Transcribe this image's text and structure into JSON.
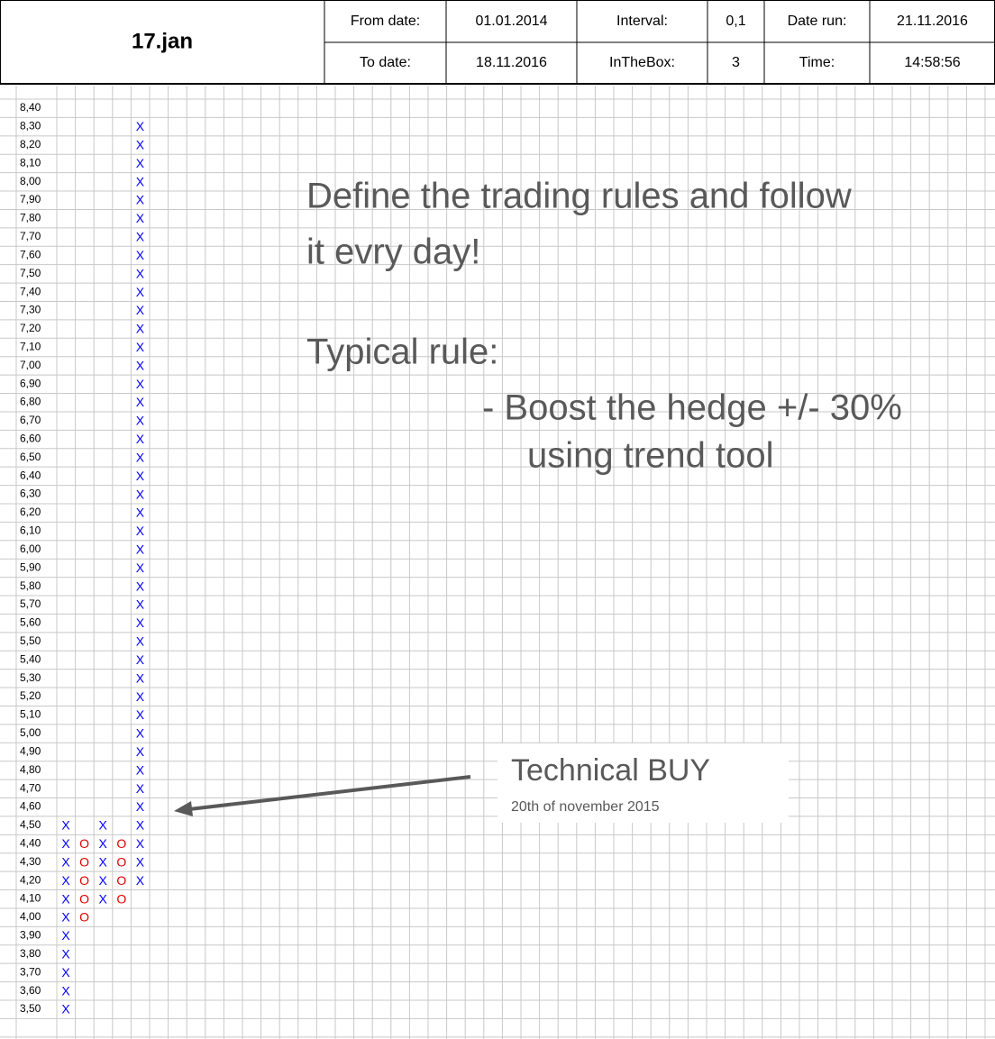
{
  "header": {
    "title": "17.jan",
    "rows": [
      [
        "From date:",
        "01.01.2014",
        "Interval:",
        "0,1",
        "Date run:",
        "21.11.2016"
      ],
      [
        "To date:",
        "18.11.2016",
        "InTheBox:",
        "3",
        "Time:",
        "14:58:56"
      ]
    ]
  },
  "chart_data": {
    "type": "point_and_figure",
    "box_size": 0.1,
    "ylim": [
      3.5,
      8.4
    ],
    "yticks": [
      {
        "value": 8.4,
        "label": "8,40"
      },
      {
        "value": 8.3,
        "label": "8,30"
      },
      {
        "value": 8.2,
        "label": "8,20"
      },
      {
        "value": 8.1,
        "label": "8,10"
      },
      {
        "value": 8.0,
        "label": "8,00"
      },
      {
        "value": 7.9,
        "label": "7,90"
      },
      {
        "value": 7.8,
        "label": "7,80"
      },
      {
        "value": 7.7,
        "label": "7,70"
      },
      {
        "value": 7.6,
        "label": "7,60"
      },
      {
        "value": 7.5,
        "label": "7,50"
      },
      {
        "value": 7.4,
        "label": "7,40"
      },
      {
        "value": 7.3,
        "label": "7,30"
      },
      {
        "value": 7.2,
        "label": "7,20"
      },
      {
        "value": 7.1,
        "label": "7,10"
      },
      {
        "value": 7.0,
        "label": "7,00"
      },
      {
        "value": 6.9,
        "label": "6,90"
      },
      {
        "value": 6.8,
        "label": "6,80"
      },
      {
        "value": 6.7,
        "label": "6,70"
      },
      {
        "value": 6.6,
        "label": "6,60"
      },
      {
        "value": 6.5,
        "label": "6,50"
      },
      {
        "value": 6.4,
        "label": "6,40"
      },
      {
        "value": 6.3,
        "label": "6,30"
      },
      {
        "value": 6.2,
        "label": "6,20"
      },
      {
        "value": 6.1,
        "label": "6,10"
      },
      {
        "value": 6.0,
        "label": "6,00"
      },
      {
        "value": 5.9,
        "label": "5,90"
      },
      {
        "value": 5.8,
        "label": "5,80"
      },
      {
        "value": 5.7,
        "label": "5,70"
      },
      {
        "value": 5.6,
        "label": "5,60"
      },
      {
        "value": 5.5,
        "label": "5,50"
      },
      {
        "value": 5.4,
        "label": "5,40"
      },
      {
        "value": 5.3,
        "label": "5,30"
      },
      {
        "value": 5.2,
        "label": "5,20"
      },
      {
        "value": 5.1,
        "label": "5,10"
      },
      {
        "value": 5.0,
        "label": "5,00"
      },
      {
        "value": 4.9,
        "label": "4,90"
      },
      {
        "value": 4.8,
        "label": "4,80"
      },
      {
        "value": 4.7,
        "label": "4,70"
      },
      {
        "value": 4.6,
        "label": "4,60"
      },
      {
        "value": 4.5,
        "label": "4,50"
      },
      {
        "value": 4.4,
        "label": "4,40"
      },
      {
        "value": 4.3,
        "label": "4,30"
      },
      {
        "value": 4.2,
        "label": "4,20"
      },
      {
        "value": 4.1,
        "label": "4,10"
      },
      {
        "value": 4.0,
        "label": "4,00"
      },
      {
        "value": 3.9,
        "label": "3,90"
      },
      {
        "value": 3.8,
        "label": "3,80"
      },
      {
        "value": 3.7,
        "label": "3,70"
      },
      {
        "value": 3.6,
        "label": "3,60"
      },
      {
        "value": 3.5,
        "label": "3,50"
      }
    ],
    "columns": [
      {
        "symbol": "X",
        "color": "#0000ff",
        "low": 3.5,
        "high": 4.5
      },
      {
        "symbol": "O",
        "color": "#e00000",
        "low": 4.0,
        "high": 4.4
      },
      {
        "symbol": "X",
        "color": "#0000ff",
        "low": 4.1,
        "high": 4.5
      },
      {
        "symbol": "O",
        "color": "#e00000",
        "low": 4.1,
        "high": 4.4
      },
      {
        "symbol": "X",
        "color": "#0000ff",
        "low": 4.2,
        "high": 8.3
      }
    ],
    "annotations": {
      "lines": [
        "Define the trading rules and follow",
        "it evry day!",
        "Typical rule:",
        "- Boost the hedge +/- 30%",
        "using trend tool"
      ],
      "callout": {
        "title": "Technical BUY",
        "subtitle": "20th of november 2015"
      }
    }
  }
}
